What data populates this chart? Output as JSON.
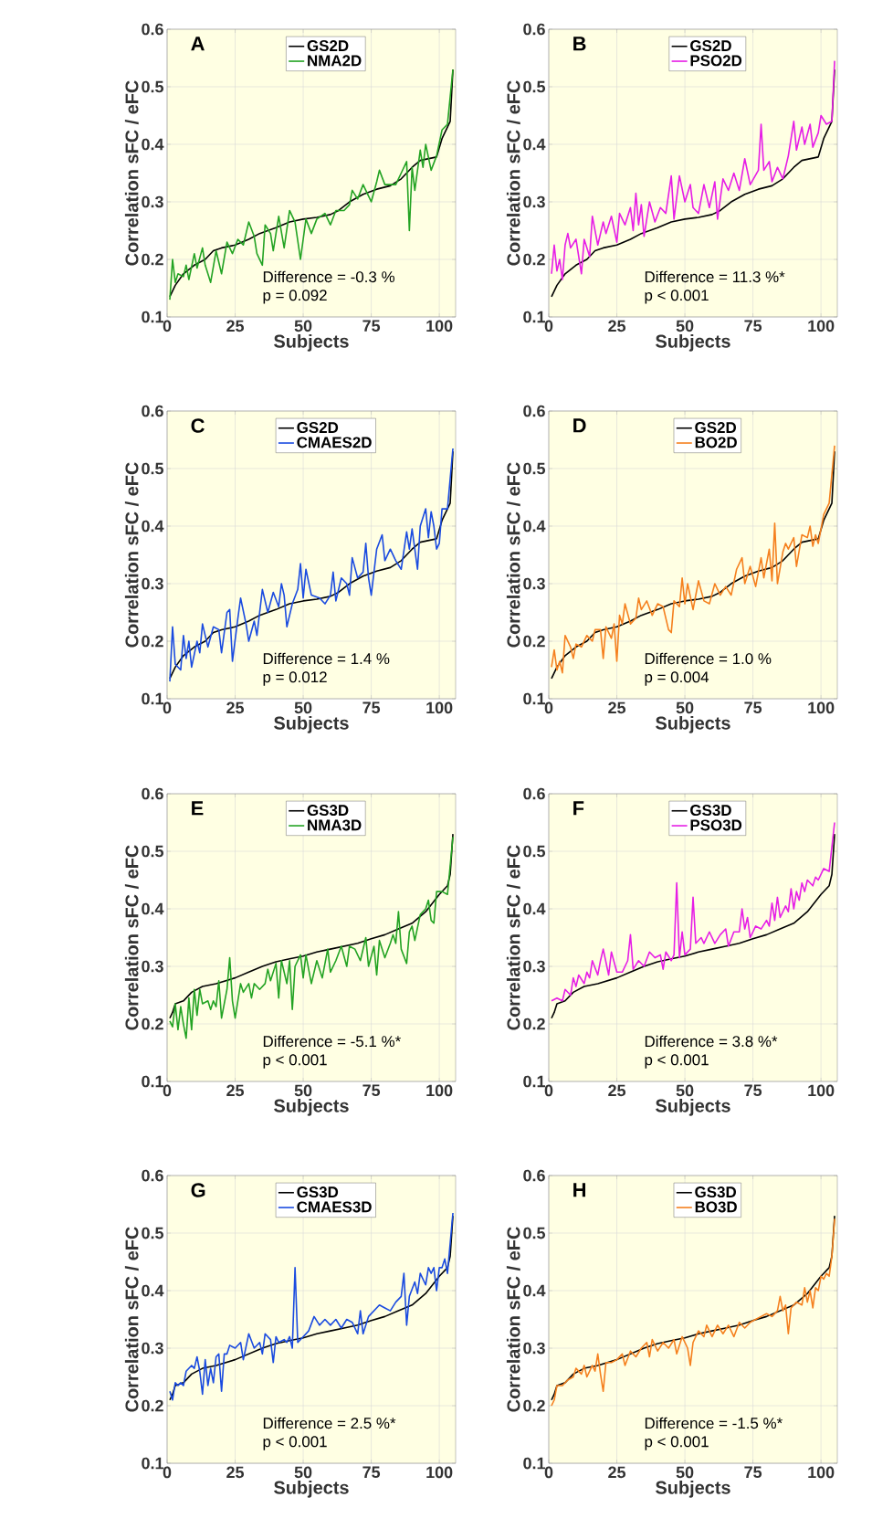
{
  "chart_data": [
    {
      "type": "line",
      "title": "A",
      "xlabel": "Subjects",
      "ylabel": "Correlation sFC / eFC",
      "xlim": [
        0,
        106
      ],
      "ylim": [
        0.1,
        0.6
      ],
      "xticks": [
        0,
        25,
        50,
        75,
        100
      ],
      "yticks": [
        0.1,
        0.2,
        0.3,
        0.4,
        0.5,
        0.6
      ],
      "grid": true,
      "legend": "top",
      "line_style": "solid",
      "annotations": [
        "Difference = -0.3 %",
        "p = 0.092"
      ],
      "series": [
        {
          "name": "GS2D",
          "color": "#000000",
          "x": [
            1,
            3,
            6,
            10,
            14,
            17,
            20,
            25,
            30,
            34,
            40,
            45,
            50,
            55,
            60,
            63,
            67,
            72,
            77,
            82,
            86,
            90,
            93,
            99,
            101,
            103,
            104,
            105
          ],
          "values": [
            0.135,
            0.155,
            0.175,
            0.19,
            0.2,
            0.215,
            0.22,
            0.225,
            0.235,
            0.245,
            0.255,
            0.265,
            0.27,
            0.273,
            0.278,
            0.285,
            0.3,
            0.313,
            0.322,
            0.328,
            0.34,
            0.36,
            0.372,
            0.378,
            0.41,
            0.43,
            0.44,
            0.53
          ]
        },
        {
          "name": "NMA2D",
          "color": "#23a323",
          "x": [
            1,
            2,
            3,
            4,
            6,
            7,
            8,
            10,
            11,
            13,
            14,
            16,
            18,
            20,
            22,
            24,
            26,
            28,
            30,
            32,
            33,
            35,
            36,
            38,
            39,
            41,
            43,
            45,
            47,
            49,
            51,
            53,
            55,
            58,
            60,
            62,
            65,
            67,
            68,
            70,
            72,
            74,
            75,
            77,
            78,
            80,
            84,
            86,
            88,
            89,
            90,
            91,
            93,
            94,
            95,
            97,
            99,
            101,
            103,
            105
          ],
          "values": [
            0.13,
            0.2,
            0.16,
            0.175,
            0.17,
            0.19,
            0.165,
            0.21,
            0.185,
            0.22,
            0.19,
            0.16,
            0.215,
            0.175,
            0.23,
            0.21,
            0.235,
            0.225,
            0.265,
            0.24,
            0.21,
            0.19,
            0.26,
            0.245,
            0.215,
            0.275,
            0.22,
            0.285,
            0.265,
            0.2,
            0.27,
            0.245,
            0.27,
            0.28,
            0.26,
            0.285,
            0.285,
            0.295,
            0.32,
            0.305,
            0.33,
            0.31,
            0.3,
            0.335,
            0.355,
            0.33,
            0.33,
            0.35,
            0.37,
            0.25,
            0.36,
            0.32,
            0.39,
            0.36,
            0.4,
            0.355,
            0.38,
            0.425,
            0.435,
            0.53
          ]
        }
      ]
    },
    {
      "type": "line",
      "title": "B",
      "xlabel": "Subjects",
      "ylabel": "Correlation sFC / eFC",
      "xlim": [
        0,
        106
      ],
      "ylim": [
        0.1,
        0.6
      ],
      "xticks": [
        0,
        25,
        50,
        75,
        100
      ],
      "yticks": [
        0.1,
        0.2,
        0.3,
        0.4,
        0.5,
        0.6
      ],
      "grid": true,
      "legend": "top",
      "line_style": "solid",
      "annotations": [
        "Difference = 11.3 %*",
        "p < 0.001"
      ],
      "series": [
        {
          "name": "GS2D",
          "color": "#000000",
          "x": [
            1,
            3,
            6,
            10,
            14,
            17,
            20,
            25,
            30,
            34,
            40,
            45,
            50,
            55,
            60,
            63,
            67,
            72,
            77,
            82,
            86,
            90,
            93,
            99,
            101,
            103,
            104,
            105
          ],
          "values": [
            0.135,
            0.155,
            0.175,
            0.19,
            0.2,
            0.215,
            0.22,
            0.225,
            0.235,
            0.245,
            0.255,
            0.265,
            0.27,
            0.273,
            0.278,
            0.285,
            0.3,
            0.313,
            0.322,
            0.328,
            0.34,
            0.36,
            0.372,
            0.378,
            0.41,
            0.43,
            0.44,
            0.53
          ]
        },
        {
          "name": "PSO2D",
          "color": "#e61ee6",
          "x": [
            1,
            2,
            3,
            4,
            5,
            6,
            7,
            8,
            10,
            12,
            13,
            15,
            16,
            18,
            20,
            21,
            23,
            25,
            26,
            28,
            30,
            31,
            32,
            33,
            34,
            35,
            37,
            39,
            41,
            43,
            45,
            46,
            48,
            50,
            52,
            53,
            55,
            57,
            59,
            61,
            62,
            64,
            66,
            68,
            70,
            72,
            74,
            77,
            78,
            79,
            81,
            82,
            84,
            86,
            88,
            90,
            91,
            93,
            94,
            96,
            97,
            99,
            100,
            102,
            104,
            105
          ],
          "values": [
            0.175,
            0.225,
            0.18,
            0.2,
            0.165,
            0.225,
            0.245,
            0.22,
            0.235,
            0.175,
            0.235,
            0.205,
            0.275,
            0.225,
            0.265,
            0.245,
            0.275,
            0.23,
            0.28,
            0.26,
            0.29,
            0.25,
            0.315,
            0.26,
            0.295,
            0.24,
            0.3,
            0.265,
            0.29,
            0.28,
            0.345,
            0.27,
            0.345,
            0.3,
            0.33,
            0.29,
            0.28,
            0.33,
            0.29,
            0.335,
            0.27,
            0.34,
            0.32,
            0.35,
            0.32,
            0.375,
            0.33,
            0.355,
            0.435,
            0.355,
            0.37,
            0.335,
            0.36,
            0.34,
            0.38,
            0.44,
            0.39,
            0.43,
            0.4,
            0.435,
            0.395,
            0.42,
            0.45,
            0.435,
            0.44,
            0.545
          ]
        }
      ]
    },
    {
      "type": "line",
      "title": "C",
      "xlabel": "Subjects",
      "ylabel": "Correlation sFC / eFC",
      "xlim": [
        0,
        106
      ],
      "ylim": [
        0.1,
        0.6
      ],
      "xticks": [
        0,
        25,
        50,
        75,
        100
      ],
      "yticks": [
        0.1,
        0.2,
        0.3,
        0.4,
        0.5,
        0.6
      ],
      "grid": true,
      "legend": "top",
      "line_style": "solid",
      "annotations": [
        "Difference = 1.4 %",
        "p = 0.012"
      ],
      "series": [
        {
          "name": "GS2D",
          "color": "#000000",
          "x": [
            1,
            3,
            6,
            10,
            14,
            17,
            20,
            25,
            30,
            34,
            40,
            45,
            50,
            55,
            60,
            63,
            67,
            72,
            77,
            82,
            86,
            90,
            93,
            99,
            101,
            103,
            104,
            105
          ],
          "values": [
            0.135,
            0.155,
            0.175,
            0.19,
            0.2,
            0.215,
            0.22,
            0.225,
            0.235,
            0.245,
            0.255,
            0.265,
            0.27,
            0.273,
            0.278,
            0.285,
            0.3,
            0.313,
            0.322,
            0.328,
            0.34,
            0.36,
            0.372,
            0.378,
            0.41,
            0.43,
            0.44,
            0.53
          ]
        },
        {
          "name": "CMAES2D",
          "color": "#1a4be0",
          "x": [
            1,
            2,
            3,
            5,
            6,
            7,
            8,
            9,
            11,
            12,
            13,
            15,
            17,
            19,
            20,
            22,
            23,
            24,
            26,
            27,
            29,
            30,
            32,
            33,
            35,
            37,
            39,
            41,
            42,
            43,
            44,
            46,
            48,
            49,
            50,
            51,
            53,
            56,
            58,
            60,
            61,
            62,
            64,
            66,
            67,
            68,
            70,
            72,
            73,
            74,
            75,
            77,
            79,
            80,
            82,
            84,
            86,
            88,
            89,
            90,
            92,
            93,
            95,
            96,
            97,
            98,
            99,
            100,
            101,
            103,
            105
          ],
          "values": [
            0.13,
            0.225,
            0.16,
            0.15,
            0.21,
            0.17,
            0.2,
            0.155,
            0.2,
            0.18,
            0.23,
            0.19,
            0.225,
            0.22,
            0.18,
            0.25,
            0.255,
            0.165,
            0.24,
            0.275,
            0.23,
            0.2,
            0.235,
            0.21,
            0.29,
            0.25,
            0.285,
            0.26,
            0.3,
            0.28,
            0.225,
            0.265,
            0.29,
            0.335,
            0.275,
            0.325,
            0.28,
            0.275,
            0.265,
            0.28,
            0.32,
            0.27,
            0.31,
            0.3,
            0.28,
            0.345,
            0.31,
            0.32,
            0.37,
            0.31,
            0.28,
            0.36,
            0.385,
            0.34,
            0.36,
            0.34,
            0.325,
            0.39,
            0.36,
            0.395,
            0.325,
            0.4,
            0.43,
            0.38,
            0.425,
            0.4,
            0.36,
            0.37,
            0.43,
            0.43,
            0.535
          ]
        }
      ]
    },
    {
      "type": "line",
      "title": "D",
      "xlabel": "Subjects",
      "ylabel": "Correlation sFC / eFC",
      "xlim": [
        0,
        106
      ],
      "ylim": [
        0.1,
        0.6
      ],
      "xticks": [
        0,
        25,
        50,
        75,
        100
      ],
      "yticks": [
        0.1,
        0.2,
        0.3,
        0.4,
        0.5,
        0.6
      ],
      "grid": true,
      "legend": "top",
      "line_style": "solid",
      "annotations": [
        "Difference = 1.0 %",
        "p = 0.004"
      ],
      "series": [
        {
          "name": "GS2D",
          "color": "#000000",
          "x": [
            1,
            3,
            6,
            10,
            14,
            17,
            20,
            25,
            30,
            34,
            40,
            45,
            50,
            55,
            60,
            63,
            67,
            72,
            77,
            82,
            86,
            90,
            93,
            99,
            101,
            103,
            104,
            105
          ],
          "values": [
            0.135,
            0.155,
            0.175,
            0.19,
            0.2,
            0.215,
            0.22,
            0.225,
            0.235,
            0.245,
            0.255,
            0.265,
            0.27,
            0.273,
            0.278,
            0.285,
            0.3,
            0.313,
            0.322,
            0.328,
            0.34,
            0.36,
            0.372,
            0.378,
            0.41,
            0.43,
            0.44,
            0.53
          ]
        },
        {
          "name": "BO2D",
          "color": "#f5801e",
          "x": [
            1,
            2,
            3,
            4,
            5,
            6,
            8,
            9,
            10,
            12,
            14,
            16,
            17,
            19,
            20,
            21,
            23,
            24,
            25,
            26,
            27,
            28,
            30,
            32,
            33,
            34,
            36,
            38,
            40,
            42,
            44,
            45,
            46,
            48,
            49,
            50,
            51,
            53,
            55,
            57,
            59,
            61,
            63,
            65,
            67,
            69,
            71,
            72,
            74,
            76,
            78,
            79,
            81,
            82,
            83,
            84,
            86,
            87,
            88,
            90,
            91,
            93,
            95,
            96,
            97,
            98,
            99,
            101,
            103,
            105
          ],
          "values": [
            0.155,
            0.185,
            0.15,
            0.165,
            0.145,
            0.21,
            0.19,
            0.17,
            0.195,
            0.19,
            0.21,
            0.2,
            0.22,
            0.22,
            0.17,
            0.225,
            0.205,
            0.23,
            0.165,
            0.245,
            0.23,
            0.265,
            0.23,
            0.24,
            0.275,
            0.255,
            0.27,
            0.245,
            0.265,
            0.26,
            0.22,
            0.215,
            0.27,
            0.26,
            0.31,
            0.265,
            0.3,
            0.255,
            0.305,
            0.27,
            0.265,
            0.3,
            0.28,
            0.295,
            0.28,
            0.325,
            0.345,
            0.3,
            0.33,
            0.295,
            0.345,
            0.31,
            0.36,
            0.305,
            0.405,
            0.3,
            0.355,
            0.37,
            0.36,
            0.38,
            0.33,
            0.385,
            0.38,
            0.4,
            0.365,
            0.385,
            0.37,
            0.42,
            0.44,
            0.54
          ]
        }
      ]
    },
    {
      "type": "line",
      "title": "E",
      "xlabel": "Subjects",
      "ylabel": "Correlation sFC / eFC",
      "xlim": [
        0,
        106
      ],
      "ylim": [
        0.1,
        0.6
      ],
      "xticks": [
        0,
        25,
        50,
        75,
        100
      ],
      "yticks": [
        0.1,
        0.2,
        0.3,
        0.4,
        0.5,
        0.6
      ],
      "grid": true,
      "legend": "top",
      "line_style": "solid",
      "annotations": [
        "Difference = -5.1 %*",
        "p < 0.001"
      ],
      "series": [
        {
          "name": "GS3D",
          "color": "#000000",
          "x": [
            1,
            2,
            3,
            6,
            9,
            13,
            18,
            25,
            30,
            35,
            40,
            45,
            50,
            55,
            60,
            65,
            70,
            75,
            80,
            85,
            90,
            95,
            100,
            103,
            104,
            105
          ],
          "values": [
            0.21,
            0.22,
            0.235,
            0.24,
            0.255,
            0.265,
            0.27,
            0.28,
            0.29,
            0.3,
            0.308,
            0.313,
            0.318,
            0.325,
            0.33,
            0.335,
            0.34,
            0.348,
            0.355,
            0.365,
            0.375,
            0.395,
            0.425,
            0.44,
            0.46,
            0.53
          ]
        },
        {
          "name": "NMA3D",
          "color": "#23a323",
          "x": [
            1,
            2,
            3,
            4,
            5,
            6,
            7,
            8,
            9,
            10,
            11,
            12,
            13,
            15,
            16,
            17,
            18,
            19,
            20,
            22,
            23,
            24,
            25,
            27,
            28,
            30,
            31,
            32,
            34,
            36,
            37,
            38,
            40,
            41,
            42,
            44,
            45,
            46,
            47,
            49,
            50,
            51,
            53,
            55,
            57,
            59,
            60,
            62,
            64,
            66,
            67,
            69,
            71,
            73,
            74,
            76,
            77,
            78,
            80,
            82,
            83,
            84,
            85,
            86,
            88,
            89,
            90,
            91,
            93,
            95,
            96,
            97,
            98,
            99,
            101,
            103,
            105
          ],
          "values": [
            0.205,
            0.195,
            0.235,
            0.19,
            0.23,
            0.2,
            0.175,
            0.245,
            0.19,
            0.26,
            0.215,
            0.26,
            0.235,
            0.24,
            0.225,
            0.24,
            0.23,
            0.275,
            0.21,
            0.26,
            0.315,
            0.24,
            0.21,
            0.27,
            0.255,
            0.27,
            0.245,
            0.27,
            0.26,
            0.27,
            0.295,
            0.275,
            0.305,
            0.245,
            0.31,
            0.27,
            0.31,
            0.225,
            0.3,
            0.32,
            0.28,
            0.32,
            0.27,
            0.31,
            0.28,
            0.33,
            0.29,
            0.31,
            0.335,
            0.3,
            0.335,
            0.33,
            0.31,
            0.35,
            0.3,
            0.335,
            0.285,
            0.345,
            0.315,
            0.34,
            0.355,
            0.34,
            0.395,
            0.33,
            0.305,
            0.36,
            0.37,
            0.345,
            0.39,
            0.4,
            0.415,
            0.38,
            0.375,
            0.43,
            0.43,
            0.425,
            0.525
          ]
        }
      ]
    },
    {
      "type": "line",
      "title": "F",
      "xlabel": "Subjects",
      "ylabel": "Correlation sFC / eFC",
      "xlim": [
        0,
        106
      ],
      "ylim": [
        0.1,
        0.6
      ],
      "xticks": [
        0,
        25,
        50,
        75,
        100
      ],
      "yticks": [
        0.1,
        0.2,
        0.3,
        0.4,
        0.5,
        0.6
      ],
      "grid": true,
      "legend": "top",
      "line_style": "solid",
      "annotations": [
        "Difference = 3.8 %*",
        "p < 0.001"
      ],
      "series": [
        {
          "name": "GS3D",
          "color": "#000000",
          "x": [
            1,
            2,
            3,
            6,
            9,
            13,
            18,
            25,
            30,
            35,
            40,
            45,
            50,
            55,
            60,
            65,
            70,
            75,
            80,
            85,
            90,
            95,
            100,
            103,
            104,
            105
          ],
          "values": [
            0.21,
            0.22,
            0.235,
            0.24,
            0.255,
            0.265,
            0.27,
            0.28,
            0.29,
            0.3,
            0.308,
            0.313,
            0.318,
            0.325,
            0.33,
            0.335,
            0.34,
            0.348,
            0.355,
            0.365,
            0.375,
            0.395,
            0.425,
            0.44,
            0.46,
            0.53
          ]
        },
        {
          "name": "PSO3D",
          "color": "#e61ee6",
          "x": [
            1,
            3,
            5,
            6,
            8,
            9,
            10,
            11,
            13,
            14,
            15,
            16,
            18,
            19,
            20,
            22,
            23,
            25,
            27,
            29,
            30,
            31,
            33,
            35,
            37,
            39,
            41,
            42,
            43,
            45,
            46,
            47,
            48,
            49,
            50,
            52,
            53,
            54,
            56,
            57,
            59,
            61,
            63,
            65,
            66,
            68,
            70,
            71,
            72,
            73,
            74,
            76,
            78,
            80,
            81,
            82,
            83,
            84,
            85,
            87,
            88,
            89,
            90,
            91,
            92,
            93,
            94,
            95,
            97,
            98,
            99,
            101,
            103,
            105
          ],
          "values": [
            0.24,
            0.245,
            0.24,
            0.26,
            0.25,
            0.28,
            0.265,
            0.285,
            0.27,
            0.29,
            0.28,
            0.31,
            0.285,
            0.31,
            0.33,
            0.285,
            0.325,
            0.29,
            0.29,
            0.31,
            0.355,
            0.295,
            0.31,
            0.3,
            0.325,
            0.315,
            0.32,
            0.295,
            0.325,
            0.31,
            0.32,
            0.445,
            0.315,
            0.36,
            0.32,
            0.33,
            0.42,
            0.34,
            0.35,
            0.34,
            0.36,
            0.34,
            0.355,
            0.365,
            0.335,
            0.36,
            0.36,
            0.4,
            0.365,
            0.385,
            0.35,
            0.37,
            0.365,
            0.38,
            0.37,
            0.41,
            0.38,
            0.42,
            0.385,
            0.405,
            0.395,
            0.435,
            0.4,
            0.43,
            0.415,
            0.445,
            0.43,
            0.45,
            0.44,
            0.455,
            0.45,
            0.47,
            0.465,
            0.55
          ]
        }
      ]
    },
    {
      "type": "line",
      "title": "G",
      "xlabel": "Subjects",
      "ylabel": "Correlation sFC / eFC",
      "xlim": [
        0,
        106
      ],
      "ylim": [
        0.1,
        0.6
      ],
      "xticks": [
        0,
        25,
        50,
        75,
        100
      ],
      "yticks": [
        0.1,
        0.2,
        0.3,
        0.4,
        0.5,
        0.6
      ],
      "grid": true,
      "legend": "top",
      "line_style": "solid",
      "annotations": [
        "Difference = 2.5 %*",
        "p < 0.001"
      ],
      "series": [
        {
          "name": "GS3D",
          "color": "#000000",
          "x": [
            1,
            2,
            3,
            6,
            9,
            13,
            18,
            25,
            30,
            35,
            40,
            45,
            50,
            55,
            60,
            65,
            70,
            75,
            80,
            85,
            90,
            95,
            100,
            103,
            104,
            105
          ],
          "values": [
            0.21,
            0.22,
            0.235,
            0.24,
            0.255,
            0.265,
            0.27,
            0.28,
            0.29,
            0.3,
            0.308,
            0.313,
            0.318,
            0.325,
            0.33,
            0.335,
            0.34,
            0.348,
            0.355,
            0.365,
            0.375,
            0.395,
            0.425,
            0.44,
            0.46,
            0.53
          ]
        },
        {
          "name": "CMAES3D",
          "color": "#1a4be0",
          "x": [
            1,
            2,
            3,
            4,
            5,
            6,
            7,
            9,
            10,
            11,
            12,
            13,
            14,
            15,
            16,
            17,
            18,
            19,
            20,
            21,
            22,
            23,
            25,
            27,
            28,
            30,
            32,
            34,
            35,
            36,
            38,
            39,
            40,
            41,
            43,
            44,
            45,
            46,
            47,
            48,
            50,
            52,
            54,
            56,
            58,
            60,
            62,
            64,
            66,
            68,
            70,
            71,
            72,
            74,
            76,
            78,
            80,
            82,
            84,
            86,
            87,
            88,
            89,
            91,
            92,
            93,
            95,
            96,
            97,
            98,
            99,
            100,
            101,
            102,
            103,
            105
          ],
          "values": [
            0.225,
            0.21,
            0.24,
            0.235,
            0.24,
            0.235,
            0.26,
            0.27,
            0.265,
            0.285,
            0.26,
            0.22,
            0.28,
            0.235,
            0.265,
            0.24,
            0.285,
            0.29,
            0.225,
            0.29,
            0.29,
            0.305,
            0.3,
            0.31,
            0.28,
            0.325,
            0.3,
            0.31,
            0.29,
            0.325,
            0.315,
            0.275,
            0.32,
            0.31,
            0.315,
            0.31,
            0.32,
            0.3,
            0.44,
            0.31,
            0.32,
            0.33,
            0.355,
            0.34,
            0.35,
            0.34,
            0.35,
            0.335,
            0.35,
            0.345,
            0.325,
            0.365,
            0.325,
            0.355,
            0.365,
            0.375,
            0.37,
            0.365,
            0.38,
            0.39,
            0.43,
            0.34,
            0.39,
            0.415,
            0.395,
            0.43,
            0.41,
            0.44,
            0.43,
            0.44,
            0.4,
            0.44,
            0.44,
            0.455,
            0.43,
            0.535
          ]
        }
      ]
    },
    {
      "type": "line",
      "title": "H",
      "xlabel": "Subjects",
      "ylabel": "Correlation sFC / eFC",
      "xlim": [
        0,
        106
      ],
      "ylim": [
        0.1,
        0.6
      ],
      "xticks": [
        0,
        25,
        50,
        75,
        100
      ],
      "yticks": [
        0.1,
        0.2,
        0.3,
        0.4,
        0.5,
        0.6
      ],
      "grid": true,
      "legend": "top",
      "line_style": "solid",
      "annotations": [
        "Difference = -1.5 %*",
        "p < 0.001"
      ],
      "series": [
        {
          "name": "GS3D",
          "color": "#000000",
          "x": [
            1,
            2,
            3,
            6,
            9,
            13,
            18,
            25,
            30,
            35,
            40,
            45,
            50,
            55,
            60,
            65,
            70,
            75,
            80,
            85,
            90,
            95,
            100,
            103,
            104,
            105
          ],
          "values": [
            0.21,
            0.22,
            0.235,
            0.24,
            0.255,
            0.265,
            0.27,
            0.28,
            0.29,
            0.3,
            0.308,
            0.313,
            0.318,
            0.325,
            0.33,
            0.335,
            0.34,
            0.348,
            0.355,
            0.365,
            0.375,
            0.395,
            0.425,
            0.44,
            0.46,
            0.53
          ]
        },
        {
          "name": "BO3D",
          "color": "#f5801e",
          "x": [
            1,
            2,
            3,
            5,
            7,
            9,
            10,
            12,
            13,
            14,
            16,
            17,
            18,
            19,
            20,
            21,
            23,
            25,
            27,
            28,
            30,
            32,
            34,
            36,
            37,
            38,
            40,
            42,
            44,
            46,
            47,
            49,
            51,
            52,
            53,
            55,
            57,
            58,
            60,
            62,
            64,
            66,
            68,
            70,
            72,
            74,
            76,
            78,
            80,
            82,
            84,
            85,
            86,
            87,
            88,
            89,
            91,
            93,
            94,
            95,
            96,
            97,
            98,
            99,
            100,
            101,
            102,
            103,
            104,
            105
          ],
          "values": [
            0.2,
            0.21,
            0.235,
            0.235,
            0.245,
            0.25,
            0.265,
            0.255,
            0.27,
            0.25,
            0.27,
            0.26,
            0.29,
            0.255,
            0.225,
            0.275,
            0.275,
            0.28,
            0.29,
            0.27,
            0.295,
            0.285,
            0.3,
            0.31,
            0.285,
            0.315,
            0.295,
            0.31,
            0.3,
            0.315,
            0.29,
            0.32,
            0.3,
            0.27,
            0.31,
            0.33,
            0.32,
            0.34,
            0.32,
            0.34,
            0.325,
            0.34,
            0.32,
            0.345,
            0.335,
            0.345,
            0.35,
            0.355,
            0.36,
            0.355,
            0.365,
            0.39,
            0.365,
            0.375,
            0.325,
            0.37,
            0.38,
            0.375,
            0.405,
            0.38,
            0.4,
            0.37,
            0.405,
            0.4,
            0.425,
            0.42,
            0.43,
            0.425,
            0.46,
            0.525
          ]
        }
      ]
    }
  ]
}
